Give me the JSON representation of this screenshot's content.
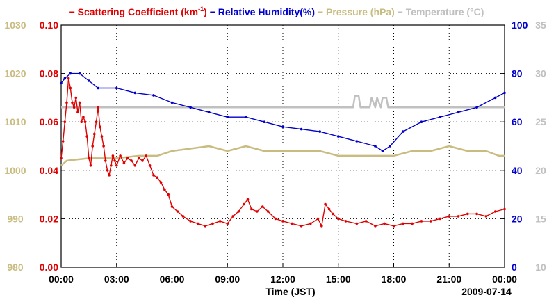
{
  "chart_data": {
    "type": "line",
    "title_parts": [
      {
        "text": "− Scattering Coefficient (km",
        "color": "#e00000",
        "sup": "-1",
        "tail": ")"
      },
      {
        "text": "− Relative Humidity(%)",
        "color": "#0000cc"
      },
      {
        "text": "− Pressure (hPa)",
        "color": "#c8bc80"
      },
      {
        "text": "− Temperature (°C)",
        "color": "#c0c0c0"
      }
    ],
    "xlabel": "Time (JST)",
    "date_label": "2009-07-14",
    "x_range_hours": [
      0,
      24
    ],
    "x_ticks": [
      {
        "h": 0,
        "label": "00:00"
      },
      {
        "h": 3,
        "label": "03:00"
      },
      {
        "h": 6,
        "label": "06:00"
      },
      {
        "h": 9,
        "label": "09:00"
      },
      {
        "h": 12,
        "label": "12:00"
      },
      {
        "h": 15,
        "label": "15:00"
      },
      {
        "h": 18,
        "label": "18:00"
      },
      {
        "h": 21,
        "label": "21:00"
      },
      {
        "h": 24,
        "label": "00:00"
      }
    ],
    "axes": {
      "scattering": {
        "range": [
          0,
          0.1
        ],
        "ticks": [
          "0.00",
          "0.02",
          "0.04",
          "0.06",
          "0.08",
          "0.10"
        ],
        "color": "#e00000"
      },
      "pressure": {
        "range": [
          980,
          1030
        ],
        "ticks": [
          "980",
          "990",
          "1000",
          "1010",
          "1020",
          "1030"
        ],
        "color": "#c8bc80"
      },
      "humidity": {
        "range": [
          0,
          100
        ],
        "ticks": [
          "0",
          "20",
          "40",
          "60",
          "80",
          "100"
        ],
        "color": "#0000cc"
      },
      "temperature": {
        "range": [
          10,
          35
        ],
        "ticks": [
          "10",
          "15",
          "20",
          "25",
          "30",
          "35"
        ],
        "color": "#c0c0c0"
      }
    },
    "series": [
      {
        "name": "Scattering Coefficient (km-1)",
        "axis": "scattering",
        "color": "#e00000",
        "points": [
          [
            0,
            0.045
          ],
          [
            0.1,
            0.052
          ],
          [
            0.2,
            0.06
          ],
          [
            0.3,
            0.068
          ],
          [
            0.4,
            0.078
          ],
          [
            0.5,
            0.074
          ],
          [
            0.6,
            0.068
          ],
          [
            0.7,
            0.066
          ],
          [
            0.8,
            0.07
          ],
          [
            0.9,
            0.064
          ],
          [
            1.0,
            0.068
          ],
          [
            1.1,
            0.06
          ],
          [
            1.2,
            0.062
          ],
          [
            1.3,
            0.06
          ],
          [
            1.4,
            0.054
          ],
          [
            1.5,
            0.045
          ],
          [
            1.6,
            0.042
          ],
          [
            1.7,
            0.05
          ],
          [
            1.8,
            0.055
          ],
          [
            1.9,
            0.06
          ],
          [
            2.0,
            0.066
          ],
          [
            2.1,
            0.058
          ],
          [
            2.2,
            0.054
          ],
          [
            2.3,
            0.05
          ],
          [
            2.4,
            0.044
          ],
          [
            2.5,
            0.04
          ],
          [
            2.6,
            0.038
          ],
          [
            2.7,
            0.042
          ],
          [
            2.8,
            0.046
          ],
          [
            2.9,
            0.044
          ],
          [
            3.0,
            0.042
          ],
          [
            3.2,
            0.046
          ],
          [
            3.4,
            0.043
          ],
          [
            3.6,
            0.045
          ],
          [
            3.8,
            0.044
          ],
          [
            4.0,
            0.042
          ],
          [
            4.2,
            0.045
          ],
          [
            4.4,
            0.044
          ],
          [
            4.6,
            0.046
          ],
          [
            4.8,
            0.042
          ],
          [
            5.0,
            0.038
          ],
          [
            5.2,
            0.037
          ],
          [
            5.4,
            0.035
          ],
          [
            5.6,
            0.032
          ],
          [
            5.8,
            0.03
          ],
          [
            6.0,
            0.025
          ],
          [
            6.3,
            0.023
          ],
          [
            6.6,
            0.021
          ],
          [
            7.0,
            0.019
          ],
          [
            7.4,
            0.018
          ],
          [
            7.8,
            0.017
          ],
          [
            8.2,
            0.018
          ],
          [
            8.6,
            0.019
          ],
          [
            9.0,
            0.018
          ],
          [
            9.3,
            0.021
          ],
          [
            9.6,
            0.023
          ],
          [
            9.9,
            0.026
          ],
          [
            10.1,
            0.028
          ],
          [
            10.3,
            0.024
          ],
          [
            10.6,
            0.023
          ],
          [
            10.9,
            0.025
          ],
          [
            11.2,
            0.023
          ],
          [
            11.6,
            0.02
          ],
          [
            12.0,
            0.019
          ],
          [
            12.5,
            0.018
          ],
          [
            13.0,
            0.017
          ],
          [
            13.5,
            0.018
          ],
          [
            13.9,
            0.02
          ],
          [
            14.1,
            0.017
          ],
          [
            14.3,
            0.026
          ],
          [
            14.5,
            0.024
          ],
          [
            14.7,
            0.022
          ],
          [
            15.0,
            0.02
          ],
          [
            15.4,
            0.019
          ],
          [
            16.0,
            0.018
          ],
          [
            16.5,
            0.019
          ],
          [
            17.0,
            0.017
          ],
          [
            17.5,
            0.018
          ],
          [
            18.0,
            0.017
          ],
          [
            18.5,
            0.018
          ],
          [
            19.0,
            0.018
          ],
          [
            19.5,
            0.019
          ],
          [
            20.0,
            0.019
          ],
          [
            20.5,
            0.02
          ],
          [
            21.0,
            0.021
          ],
          [
            21.5,
            0.021
          ],
          [
            22.0,
            0.022
          ],
          [
            22.5,
            0.022
          ],
          [
            23.0,
            0.021
          ],
          [
            23.5,
            0.023
          ],
          [
            24.0,
            0.024
          ]
        ]
      },
      {
        "name": "Relative Humidity(%)",
        "axis": "humidity",
        "color": "#0000cc",
        "points": [
          [
            0,
            76
          ],
          [
            0.2,
            78
          ],
          [
            0.5,
            80
          ],
          [
            1.0,
            80
          ],
          [
            1.5,
            77
          ],
          [
            2.0,
            74
          ],
          [
            3.0,
            74
          ],
          [
            4.0,
            72
          ],
          [
            5.0,
            71
          ],
          [
            6.0,
            68
          ],
          [
            7.0,
            66
          ],
          [
            8.0,
            64
          ],
          [
            9.0,
            62
          ],
          [
            10.0,
            62
          ],
          [
            11.0,
            60
          ],
          [
            12.0,
            58
          ],
          [
            13.0,
            57
          ],
          [
            14.0,
            56
          ],
          [
            15.0,
            54
          ],
          [
            16.0,
            52
          ],
          [
            17.0,
            50
          ],
          [
            17.4,
            48
          ],
          [
            17.8,
            50
          ],
          [
            18.5,
            56
          ],
          [
            19.5,
            60
          ],
          [
            20.5,
            62
          ],
          [
            21.5,
            64
          ],
          [
            22.5,
            66
          ],
          [
            23.5,
            70
          ],
          [
            24.0,
            72
          ]
        ]
      },
      {
        "name": "Pressure (hPa)",
        "axis": "pressure",
        "color": "#c8bc80",
        "points": [
          [
            0,
            1001
          ],
          [
            0.3,
            1002
          ],
          [
            1.5,
            1002.5
          ],
          [
            3.0,
            1002.5
          ],
          [
            4.2,
            1003
          ],
          [
            5.2,
            1003
          ],
          [
            6.0,
            1004
          ],
          [
            8.0,
            1005
          ],
          [
            9.0,
            1004
          ],
          [
            10.0,
            1005
          ],
          [
            11.0,
            1004
          ],
          [
            12.0,
            1004
          ],
          [
            13.0,
            1004
          ],
          [
            14.0,
            1004
          ],
          [
            15.0,
            1003
          ],
          [
            16.0,
            1003
          ],
          [
            17.0,
            1003
          ],
          [
            18.0,
            1003
          ],
          [
            19.0,
            1004
          ],
          [
            20.0,
            1004
          ],
          [
            21.0,
            1005
          ],
          [
            22.0,
            1004
          ],
          [
            23.0,
            1004
          ],
          [
            23.7,
            1003
          ],
          [
            24.0,
            1003
          ]
        ]
      },
      {
        "name": "Temperature (°C)",
        "axis": "temperature",
        "color": "#c0c0c0",
        "points": [
          [
            0,
            26.5
          ],
          [
            15.8,
            26.5
          ],
          [
            15.9,
            27.7
          ],
          [
            16.1,
            27.7
          ],
          [
            16.2,
            26.5
          ],
          [
            16.7,
            26.5
          ],
          [
            16.8,
            27.5
          ],
          [
            17.0,
            26.5
          ],
          [
            17.1,
            27.5
          ],
          [
            17.3,
            26.5
          ],
          [
            17.4,
            27.5
          ],
          [
            17.6,
            27.5
          ],
          [
            17.7,
            26.5
          ],
          [
            24.0,
            26.5
          ]
        ]
      }
    ]
  }
}
